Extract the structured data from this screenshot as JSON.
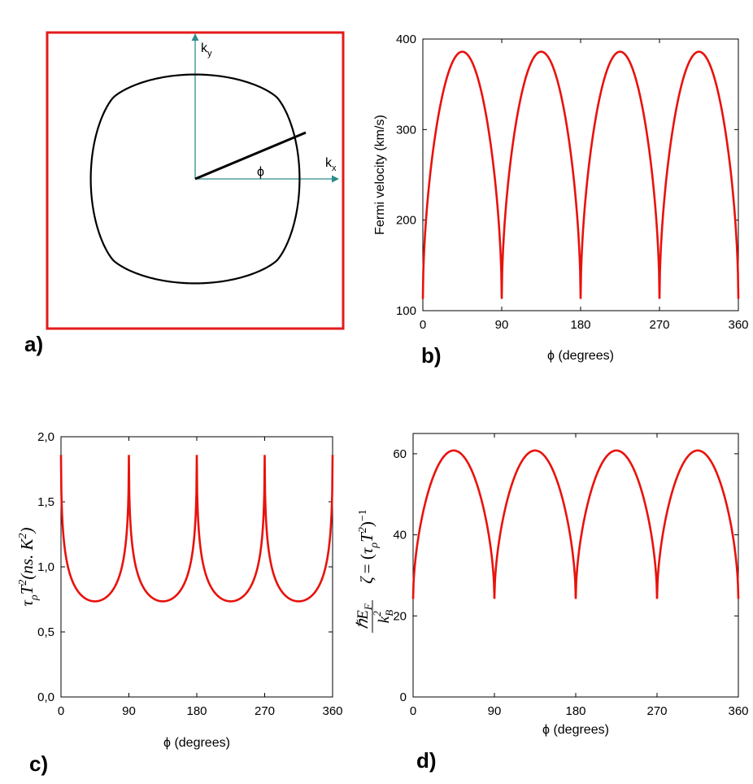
{
  "panel_labels": {
    "a": "a)",
    "b": "b)",
    "c": "c)",
    "d": "d)"
  },
  "panel_a": {
    "ky_label": "k",
    "ky_sub": "y",
    "kx_label": "k",
    "kx_sub": "x",
    "phi_label": "ϕ",
    "frame_color": "#e31a1c",
    "axis_color": "#2e8b8b",
    "fermi_surface_color": "#000000"
  },
  "chart_data": [
    {
      "panel": "b",
      "type": "line",
      "title": "",
      "xlabel": "ϕ (degrees)",
      "ylabel": "Fermi velocity (km/s)",
      "xlim": [
        0,
        360
      ],
      "ylim": [
        100,
        400
      ],
      "xticks": [
        0,
        90,
        180,
        270,
        360
      ],
      "xtick_labels": [
        "0",
        "90",
        "180",
        "270",
        "360"
      ],
      "yticks": [
        100,
        200,
        300,
        400
      ],
      "ytick_labels": [
        "100",
        "200",
        "300",
        "400"
      ],
      "series": [
        {
          "name": "v_F",
          "color": "#e8120c",
          "min": 113,
          "max": 386,
          "period_deg": 90,
          "shape": "arch"
        }
      ]
    },
    {
      "panel": "c",
      "type": "line",
      "title": "",
      "xlabel": "ϕ (degrees)",
      "ylabel_parts": {
        "tau": "τ",
        "rho": "ρ",
        "T": "T",
        "sq": "2",
        "rest": "(ns. K",
        "sq2": "2",
        "close": ")"
      },
      "xlim": [
        0,
        360
      ],
      "ylim": [
        0.0,
        2.0
      ],
      "xticks": [
        0,
        90,
        180,
        270,
        360
      ],
      "xtick_labels": [
        "0",
        "90",
        "180",
        "270",
        "360"
      ],
      "yticks": [
        0.0,
        0.5,
        1.0,
        1.5,
        2.0
      ],
      "ytick_labels": [
        "0,0",
        "0,5",
        "1,0",
        "1,5",
        "2,0"
      ],
      "series": [
        {
          "name": "tau_rho T^2",
          "color": "#e8120c",
          "min": 0.735,
          "max": 1.86,
          "period_deg": 90,
          "shape": "inverse-arch"
        }
      ]
    },
    {
      "panel": "d",
      "type": "line",
      "title": "",
      "xlabel": "ϕ (degrees)",
      "ylabel_parts": {
        "zeta": "ζ",
        "eq": "= (",
        "tau": "τ",
        "rho": "ρ",
        "T": "T",
        "sq": "2",
        "close": ")",
        "inv": "−1",
        "hbar": "ℏE",
        "F": "F",
        "k": "k",
        "B": "B",
        "sq2": "2"
      },
      "xlim": [
        0,
        360
      ],
      "ylim": [
        0,
        65
      ],
      "xticks": [
        0,
        90,
        180,
        270,
        360
      ],
      "xtick_labels": [
        "0",
        "90",
        "180",
        "270",
        "360"
      ],
      "yticks": [
        0,
        20,
        40,
        60
      ],
      "ytick_labels": [
        "0",
        "20",
        "40",
        "60"
      ],
      "series": [
        {
          "name": "zeta",
          "color": "#e8120c",
          "min": 24.2,
          "max": 60.8,
          "period_deg": 90,
          "shape": "arch"
        }
      ]
    }
  ]
}
